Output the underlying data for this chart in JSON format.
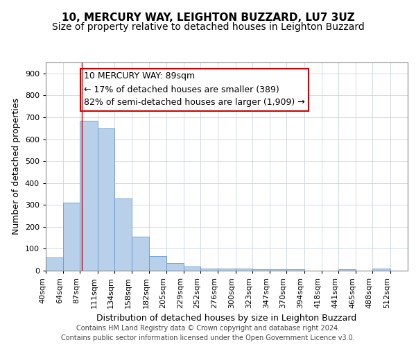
{
  "title1": "10, MERCURY WAY, LEIGHTON BUZZARD, LU7 3UZ",
  "title2": "Size of property relative to detached houses in Leighton Buzzard",
  "xlabel": "Distribution of detached houses by size in Leighton Buzzard",
  "ylabel": "Number of detached properties",
  "footer1": "Contains HM Land Registry data © Crown copyright and database right 2024.",
  "footer2": "Contains public sector information licensed under the Open Government Licence v3.0.",
  "annotation_title": "10 MERCURY WAY: 89sqm",
  "annotation_line1": "← 17% of detached houses are smaller (389)",
  "annotation_line2": "82% of semi-detached houses are larger (1,909) →",
  "bar_color": "#b8d0ea",
  "bar_edge_color": "#6699cc",
  "redline_color": "#cc0000",
  "redline_x": 89,
  "categories": [
    "40sqm",
    "64sqm",
    "87sqm",
    "111sqm",
    "134sqm",
    "158sqm",
    "182sqm",
    "205sqm",
    "229sqm",
    "252sqm",
    "276sqm",
    "300sqm",
    "323sqm",
    "347sqm",
    "370sqm",
    "394sqm",
    "418sqm",
    "441sqm",
    "465sqm",
    "488sqm",
    "512sqm"
  ],
  "bin_edges": [
    40,
    64,
    87,
    111,
    134,
    158,
    182,
    205,
    229,
    252,
    276,
    300,
    323,
    347,
    370,
    394,
    418,
    441,
    465,
    488,
    512,
    536
  ],
  "values": [
    60,
    310,
    685,
    650,
    330,
    155,
    65,
    35,
    18,
    10,
    10,
    10,
    5,
    5,
    5,
    0,
    0,
    5,
    0,
    10,
    0
  ],
  "ylim": [
    0,
    950
  ],
  "yticks": [
    0,
    100,
    200,
    300,
    400,
    500,
    600,
    700,
    800,
    900
  ],
  "grid_color": "#c8d4e8",
  "annotation_box_color": "#cc0000",
  "title1_fontsize": 11,
  "title2_fontsize": 10,
  "annotation_fontsize": 9,
  "ylabel_fontsize": 9,
  "xlabel_fontsize": 9,
  "tick_fontsize": 8,
  "footer_fontsize": 7
}
